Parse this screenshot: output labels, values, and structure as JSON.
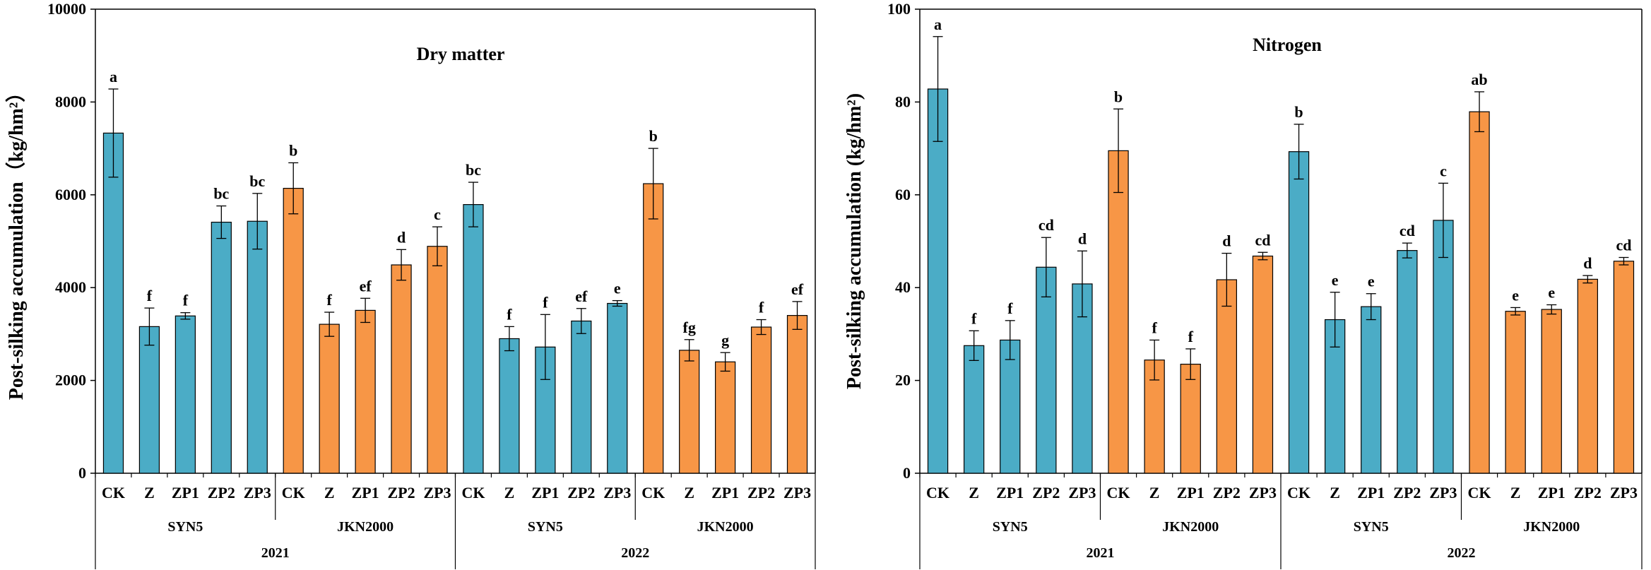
{
  "colors": {
    "SYN5": "#4BACC6",
    "JKN2000": "#F79646",
    "stroke": "#000000"
  },
  "chart_data": [
    {
      "type": "bar",
      "title": "Dry matter",
      "ylabel": "Post-silking accumulation（kg/hm²）",
      "ylim": [
        0,
        10000
      ],
      "yticks": [
        0,
        2000,
        4000,
        6000,
        8000,
        10000
      ],
      "tick_labels": [
        "0",
        "2000",
        "4000",
        "6000",
        "8000",
        "10000"
      ],
      "categories": [
        "CK",
        "Z",
        "ZP1",
        "ZP2",
        "ZP3",
        "CK",
        "Z",
        "ZP1",
        "ZP2",
        "ZP3",
        "CK",
        "Z",
        "ZP1",
        "ZP2",
        "ZP3",
        "CK",
        "Z",
        "ZP1",
        "ZP2",
        "ZP3"
      ],
      "variety": [
        "SYN5",
        "SYN5",
        "SYN5",
        "SYN5",
        "SYN5",
        "JKN2000",
        "JKN2000",
        "JKN2000",
        "JKN2000",
        "JKN2000",
        "SYN5",
        "SYN5",
        "SYN5",
        "SYN5",
        "SYN5",
        "JKN2000",
        "JKN2000",
        "JKN2000",
        "JKN2000",
        "JKN2000"
      ],
      "values": [
        7330,
        3160,
        3390,
        5410,
        5430,
        6140,
        3210,
        3510,
        4490,
        4890,
        5790,
        2900,
        2720,
        3280,
        3660,
        6240,
        2650,
        2400,
        3150,
        3400
      ],
      "errors": [
        950,
        400,
        70,
        350,
        600,
        550,
        260,
        260,
        330,
        420,
        480,
        260,
        700,
        270,
        60,
        760,
        230,
        200,
        160,
        300
      ],
      "letters": [
        "a",
        "f",
        "f",
        "bc",
        "bc",
        "b",
        "f",
        "ef",
        "d",
        "c",
        "bc",
        "f",
        "f",
        "ef",
        "e",
        "b",
        "fg",
        "g",
        "f",
        "ef"
      ],
      "groups": [
        "SYN5",
        "JKN2000",
        "SYN5",
        "JKN2000"
      ],
      "years": [
        "2021",
        "2022"
      ]
    },
    {
      "type": "bar",
      "title": "Nitrogen",
      "ylabel": "Post-silking accumulation (kg/hm²)",
      "ylim": [
        0,
        100
      ],
      "yticks": [
        0,
        20,
        40,
        60,
        80,
        100
      ],
      "tick_labels": [
        "0",
        "20",
        "40",
        "60",
        "80",
        "100"
      ],
      "categories": [
        "CK",
        "Z",
        "ZP1",
        "ZP2",
        "ZP3",
        "CK",
        "Z",
        "ZP1",
        "ZP2",
        "ZP3",
        "CK",
        "Z",
        "ZP1",
        "ZP2",
        "ZP3",
        "CK",
        "Z",
        "ZP1",
        "ZP2",
        "ZP3"
      ],
      "variety": [
        "SYN5",
        "SYN5",
        "SYN5",
        "SYN5",
        "SYN5",
        "JKN2000",
        "JKN2000",
        "JKN2000",
        "JKN2000",
        "JKN2000",
        "SYN5",
        "SYN5",
        "SYN5",
        "SYN5",
        "SYN5",
        "JKN2000",
        "JKN2000",
        "JKN2000",
        "JKN2000",
        "JKN2000"
      ],
      "values": [
        82.8,
        27.5,
        28.7,
        44.4,
        40.8,
        69.5,
        24.4,
        23.5,
        41.7,
        46.8,
        69.3,
        33.1,
        35.9,
        48.0,
        54.5,
        77.9,
        34.9,
        35.3,
        41.8,
        45.7
      ],
      "errors": [
        11.3,
        3.2,
        4.2,
        6.4,
        7.1,
        9.0,
        4.3,
        3.3,
        5.7,
        0.8,
        5.9,
        5.9,
        2.8,
        1.6,
        8.0,
        4.3,
        0.8,
        1.0,
        0.8,
        0.8
      ],
      "letters": [
        "a",
        "f",
        "f",
        "cd",
        "d",
        "b",
        "f",
        "f",
        "d",
        "cd",
        "b",
        "e",
        "e",
        "cd",
        "c",
        "ab",
        "e",
        "e",
        "d",
        "cd"
      ],
      "groups": [
        "SYN5",
        "JKN2000",
        "SYN5",
        "JKN2000"
      ],
      "years": [
        "2021",
        "2022"
      ]
    }
  ]
}
